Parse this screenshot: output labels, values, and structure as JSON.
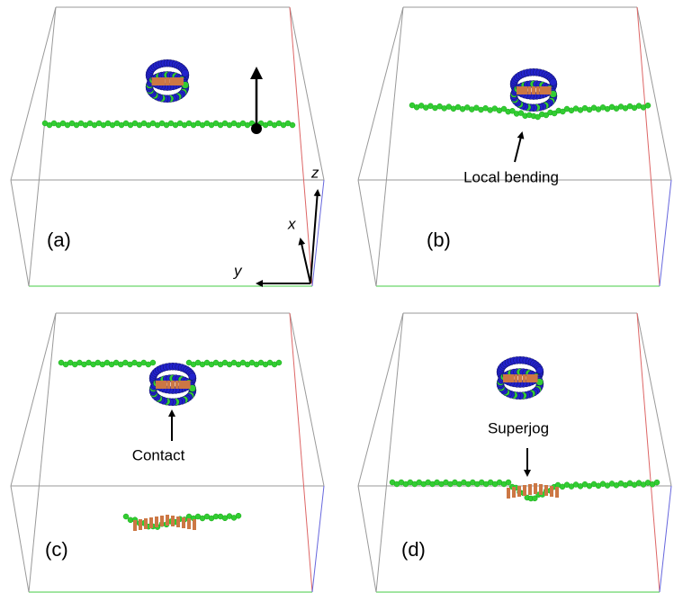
{
  "panels": [
    {
      "label": "(a)",
      "axes": {
        "z": "z",
        "x": "x",
        "y": "y"
      }
    },
    {
      "label": "(b)",
      "annotation": "Local bending"
    },
    {
      "label": "(c)",
      "annotation": "Contact"
    },
    {
      "label": "(d)",
      "annotation": "Superjog"
    }
  ]
}
